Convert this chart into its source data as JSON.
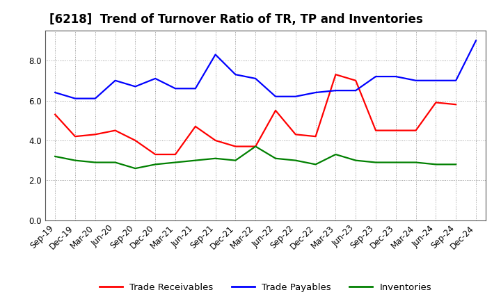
{
  "title": "[6218]  Trend of Turnover Ratio of TR, TP and Inventories",
  "x_labels": [
    "Sep-19",
    "Dec-19",
    "Mar-20",
    "Jun-20",
    "Sep-20",
    "Dec-20",
    "Mar-21",
    "Jun-21",
    "Sep-21",
    "Dec-21",
    "Mar-22",
    "Jun-22",
    "Sep-22",
    "Dec-22",
    "Mar-23",
    "Jun-23",
    "Sep-23",
    "Dec-23",
    "Mar-24",
    "Jun-24",
    "Sep-24",
    "Dec-24"
  ],
  "trade_receivables": [
    5.3,
    4.2,
    4.3,
    4.5,
    4.0,
    3.3,
    3.3,
    4.7,
    4.0,
    3.7,
    3.7,
    5.5,
    4.3,
    4.2,
    7.3,
    7.0,
    4.5,
    4.5,
    4.5,
    5.9,
    5.8,
    null
  ],
  "trade_payables": [
    6.4,
    6.1,
    6.1,
    7.0,
    6.7,
    7.1,
    6.6,
    6.6,
    8.3,
    7.3,
    7.1,
    6.2,
    6.2,
    6.4,
    6.5,
    6.5,
    7.2,
    7.2,
    7.0,
    7.0,
    7.0,
    9.0
  ],
  "inventories": [
    3.2,
    3.0,
    2.9,
    2.9,
    2.6,
    2.8,
    2.9,
    3.0,
    3.1,
    3.0,
    3.7,
    3.1,
    3.0,
    2.8,
    3.3,
    3.0,
    2.9,
    2.9,
    2.9,
    2.8,
    2.8,
    null
  ],
  "ylim": [
    0,
    9.5
  ],
  "yticks": [
    0.0,
    2.0,
    4.0,
    6.0,
    8.0
  ],
  "legend_labels": [
    "Trade Receivables",
    "Trade Payables",
    "Inventories"
  ],
  "line_colors": [
    "#ff0000",
    "#0000ff",
    "#008000"
  ],
  "background_color": "#ffffff",
  "grid_color": "#999999",
  "title_fontsize": 12,
  "axis_fontsize": 8.5,
  "legend_fontsize": 9.5,
  "linewidth": 1.6
}
